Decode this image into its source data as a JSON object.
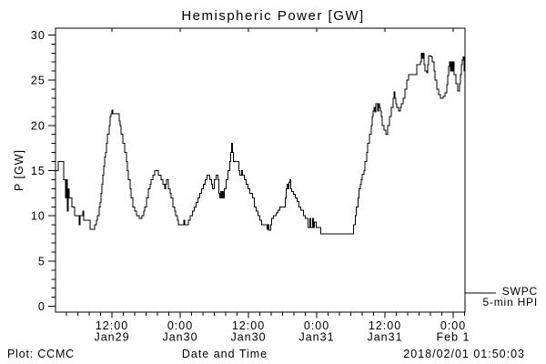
{
  "chart": {
    "title": "Hemispheric Power [GW]",
    "xlabel": "Date and Time",
    "ylabel": "P [GW]"
  },
  "footer": {
    "credit": "Plot: CCMC",
    "timestamp": "2018/02/01 01:50:03"
  },
  "legend": {
    "line1": "SWPC",
    "line2": "5-min HPI"
  },
  "chart_data": {
    "type": "line",
    "step": true,
    "title": "Hemispheric Power [GW]",
    "xlabel": "Date and Time",
    "ylabel": "P [GW]",
    "ylim": [
      0,
      30
    ],
    "y_ticks_major": [
      0,
      5,
      10,
      15,
      20,
      25,
      30
    ],
    "y_minor_step": 1,
    "x_hours_span": 72.05,
    "x_minor_step_hours": 2,
    "grid": false,
    "legend_position": "right-outside",
    "legend_lines": [
      "SWPC",
      "5-min HPI"
    ],
    "x_ticks": [
      {
        "hour": 9.95,
        "time": "12:00",
        "date": "Jan29"
      },
      {
        "hour": 21.94,
        "time": "0:00",
        "date": "Jan30"
      },
      {
        "hour": 33.94,
        "time": "12:00",
        "date": "Jan30"
      },
      {
        "hour": 45.94,
        "time": "0:00",
        "date": "Jan31"
      },
      {
        "hour": 57.94,
        "time": "12:00",
        "date": "Jan31"
      },
      {
        "hour": 69.94,
        "time": "0:00",
        "date": "Feb 1"
      }
    ],
    "series": [
      {
        "name": "SWPC 5-min HPI",
        "unit": "GW",
        "steps": [
          [
            0,
            15
          ],
          [
            0.48,
            16
          ],
          [
            1.44,
            14
          ],
          [
            1.76,
            12
          ],
          [
            1.93,
            14
          ],
          [
            2.09,
            10.5
          ],
          [
            2.25,
            13
          ],
          [
            2.41,
            12
          ],
          [
            2.89,
            11
          ],
          [
            3.37,
            10
          ],
          [
            4.17,
            9
          ],
          [
            4.33,
            10
          ],
          [
            4.81,
            10.5
          ],
          [
            4.97,
            9.5
          ],
          [
            6.1,
            8.5
          ],
          [
            6.9,
            9
          ],
          [
            7.22,
            9.5
          ],
          [
            7.38,
            10
          ],
          [
            7.7,
            11
          ],
          [
            7.86,
            11.5
          ],
          [
            8.02,
            12.5
          ],
          [
            8.18,
            13.5
          ],
          [
            8.34,
            14.5
          ],
          [
            8.5,
            15.5
          ],
          [
            8.66,
            16.5
          ],
          [
            8.82,
            17
          ],
          [
            8.98,
            18
          ],
          [
            9.14,
            19
          ],
          [
            9.47,
            20
          ],
          [
            9.63,
            21
          ],
          [
            9.79,
            21.3
          ],
          [
            9.95,
            21.7
          ],
          [
            10.11,
            21.3
          ],
          [
            11.23,
            20.5
          ],
          [
            11.39,
            20
          ],
          [
            11.55,
            19
          ],
          [
            11.87,
            18
          ],
          [
            12.19,
            17
          ],
          [
            12.51,
            16
          ],
          [
            12.67,
            15
          ],
          [
            12.83,
            14
          ],
          [
            13.16,
            13
          ],
          [
            13.32,
            12
          ],
          [
            13.64,
            11
          ],
          [
            13.96,
            10.5
          ],
          [
            14.28,
            10
          ],
          [
            14.76,
            9.7
          ],
          [
            15.24,
            10
          ],
          [
            15.56,
            10.5
          ],
          [
            15.72,
            11
          ],
          [
            16.04,
            12
          ],
          [
            16.36,
            13
          ],
          [
            16.69,
            13.5
          ],
          [
            16.85,
            14
          ],
          [
            17.17,
            14.5
          ],
          [
            17.49,
            15
          ],
          [
            18.13,
            14.5
          ],
          [
            18.61,
            14
          ],
          [
            18.93,
            13.5
          ],
          [
            19.25,
            13
          ],
          [
            19.41,
            13.5
          ],
          [
            19.58,
            14
          ],
          [
            19.9,
            13
          ],
          [
            20.22,
            12.5
          ],
          [
            20.38,
            12
          ],
          [
            20.7,
            11
          ],
          [
            21.02,
            10.5
          ],
          [
            21.18,
            10
          ],
          [
            21.5,
            9.5
          ],
          [
            21.66,
            9
          ],
          [
            22.62,
            9.5
          ],
          [
            22.78,
            9
          ],
          [
            23.42,
            9.5
          ],
          [
            23.74,
            10
          ],
          [
            24.07,
            10.5
          ],
          [
            24.39,
            11
          ],
          [
            24.71,
            11.5
          ],
          [
            25.03,
            12
          ],
          [
            25.35,
            12.5
          ],
          [
            25.67,
            13
          ],
          [
            25.99,
            13.5
          ],
          [
            26.31,
            14
          ],
          [
            26.63,
            14.5
          ],
          [
            27.11,
            14
          ],
          [
            27.44,
            13.5
          ],
          [
            27.6,
            13
          ],
          [
            27.92,
            14
          ],
          [
            28.24,
            14.5
          ],
          [
            28.56,
            14
          ],
          [
            28.72,
            12.5
          ],
          [
            28.88,
            12
          ],
          [
            29.04,
            12.7
          ],
          [
            29.2,
            12
          ],
          [
            29.36,
            12.7
          ],
          [
            29.52,
            12
          ],
          [
            29.68,
            13
          ],
          [
            30,
            14
          ],
          [
            30.32,
            15
          ],
          [
            30.64,
            16
          ],
          [
            30.8,
            17
          ],
          [
            30.96,
            18
          ],
          [
            31.12,
            17
          ],
          [
            31.28,
            16
          ],
          [
            32.25,
            15
          ],
          [
            32.41,
            14.5
          ],
          [
            32.73,
            15
          ],
          [
            32.89,
            14.5
          ],
          [
            33.21,
            14
          ],
          [
            33.53,
            13.5
          ],
          [
            33.85,
            13
          ],
          [
            34.17,
            12.5
          ],
          [
            34.65,
            12
          ],
          [
            34.97,
            11
          ],
          [
            35.3,
            10.5
          ],
          [
            35.62,
            10
          ],
          [
            35.94,
            9.5
          ],
          [
            36.26,
            9
          ],
          [
            37.22,
            8.5
          ],
          [
            37.38,
            9
          ],
          [
            37.54,
            8.4
          ],
          [
            37.86,
            9
          ],
          [
            38.02,
            9.7
          ],
          [
            38.35,
            10
          ],
          [
            38.83,
            10.3
          ],
          [
            39.15,
            10.6
          ],
          [
            39.47,
            11
          ],
          [
            40.43,
            12
          ],
          [
            40.59,
            13
          ],
          [
            40.75,
            13.5
          ],
          [
            40.91,
            13
          ],
          [
            41.07,
            13.7
          ],
          [
            41.23,
            14
          ],
          [
            41.39,
            13
          ],
          [
            41.55,
            12.7
          ],
          [
            41.87,
            12.4
          ],
          [
            42.2,
            12
          ],
          [
            42.52,
            11.6
          ],
          [
            42.84,
            11
          ],
          [
            43.16,
            10.6
          ],
          [
            43.64,
            10
          ],
          [
            43.96,
            9.7
          ],
          [
            44.44,
            8.7
          ],
          [
            44.77,
            9.7
          ],
          [
            44.93,
            8.7
          ],
          [
            45.25,
            9.7
          ],
          [
            45.41,
            8.7
          ],
          [
            45.57,
            9.3
          ],
          [
            45.89,
            8.7
          ],
          [
            46.69,
            8
          ],
          [
            52.46,
            9
          ],
          [
            52.78,
            10
          ],
          [
            52.94,
            11
          ],
          [
            53.26,
            12
          ],
          [
            53.42,
            13
          ],
          [
            53.59,
            13.5
          ],
          [
            53.75,
            14
          ],
          [
            53.91,
            14.6
          ],
          [
            54.23,
            15
          ],
          [
            54.39,
            16
          ],
          [
            54.71,
            17
          ],
          [
            54.87,
            18
          ],
          [
            55.19,
            19
          ],
          [
            55.51,
            20
          ],
          [
            55.67,
            21
          ],
          [
            55.83,
            21.6
          ],
          [
            55.99,
            22
          ],
          [
            56.15,
            21.5
          ],
          [
            56.31,
            22.4
          ],
          [
            56.63,
            21.6
          ],
          [
            56.79,
            22.4
          ],
          [
            56.96,
            22
          ],
          [
            57.12,
            21.6
          ],
          [
            57.28,
            21
          ],
          [
            57.44,
            20
          ],
          [
            57.76,
            19.5
          ],
          [
            58.08,
            19
          ],
          [
            58.4,
            20
          ],
          [
            58.72,
            21
          ],
          [
            59.04,
            22
          ],
          [
            59.36,
            23
          ],
          [
            59.52,
            23.7
          ],
          [
            59.68,
            23
          ],
          [
            59.84,
            22.4
          ],
          [
            60,
            22
          ],
          [
            60.32,
            21.6
          ],
          [
            60.64,
            22
          ],
          [
            60.81,
            22.4
          ],
          [
            61.13,
            23
          ],
          [
            61.45,
            24
          ],
          [
            61.77,
            25
          ],
          [
            62.09,
            25.6
          ],
          [
            63.53,
            26.7
          ],
          [
            64.17,
            27
          ],
          [
            64.33,
            28
          ],
          [
            64.5,
            27.4
          ],
          [
            64.66,
            28
          ],
          [
            64.82,
            26.7
          ],
          [
            64.98,
            26
          ],
          [
            65.3,
            25.8
          ],
          [
            65.46,
            26.7
          ],
          [
            65.62,
            27.7
          ],
          [
            66.1,
            27.6
          ],
          [
            66.26,
            27
          ],
          [
            66.58,
            26
          ],
          [
            66.74,
            25
          ],
          [
            67.06,
            24
          ],
          [
            67.38,
            23.4
          ],
          [
            67.7,
            23
          ],
          [
            68.18,
            23.2
          ],
          [
            68.51,
            23.6
          ],
          [
            68.83,
            24.5
          ],
          [
            68.99,
            25.5
          ],
          [
            69.15,
            26.5
          ],
          [
            69.31,
            27
          ],
          [
            69.47,
            26
          ],
          [
            69.63,
            27
          ],
          [
            69.79,
            26
          ],
          [
            69.95,
            27
          ],
          [
            70.11,
            25.6
          ],
          [
            70.43,
            24.6
          ],
          [
            70.75,
            23.8
          ],
          [
            71.07,
            24.6
          ],
          [
            71.23,
            25.6
          ],
          [
            71.39,
            26.7
          ],
          [
            71.55,
            27.2
          ],
          [
            71.71,
            27.6
          ],
          [
            71.87,
            26
          ],
          [
            72.03,
            24
          ]
        ]
      }
    ]
  }
}
